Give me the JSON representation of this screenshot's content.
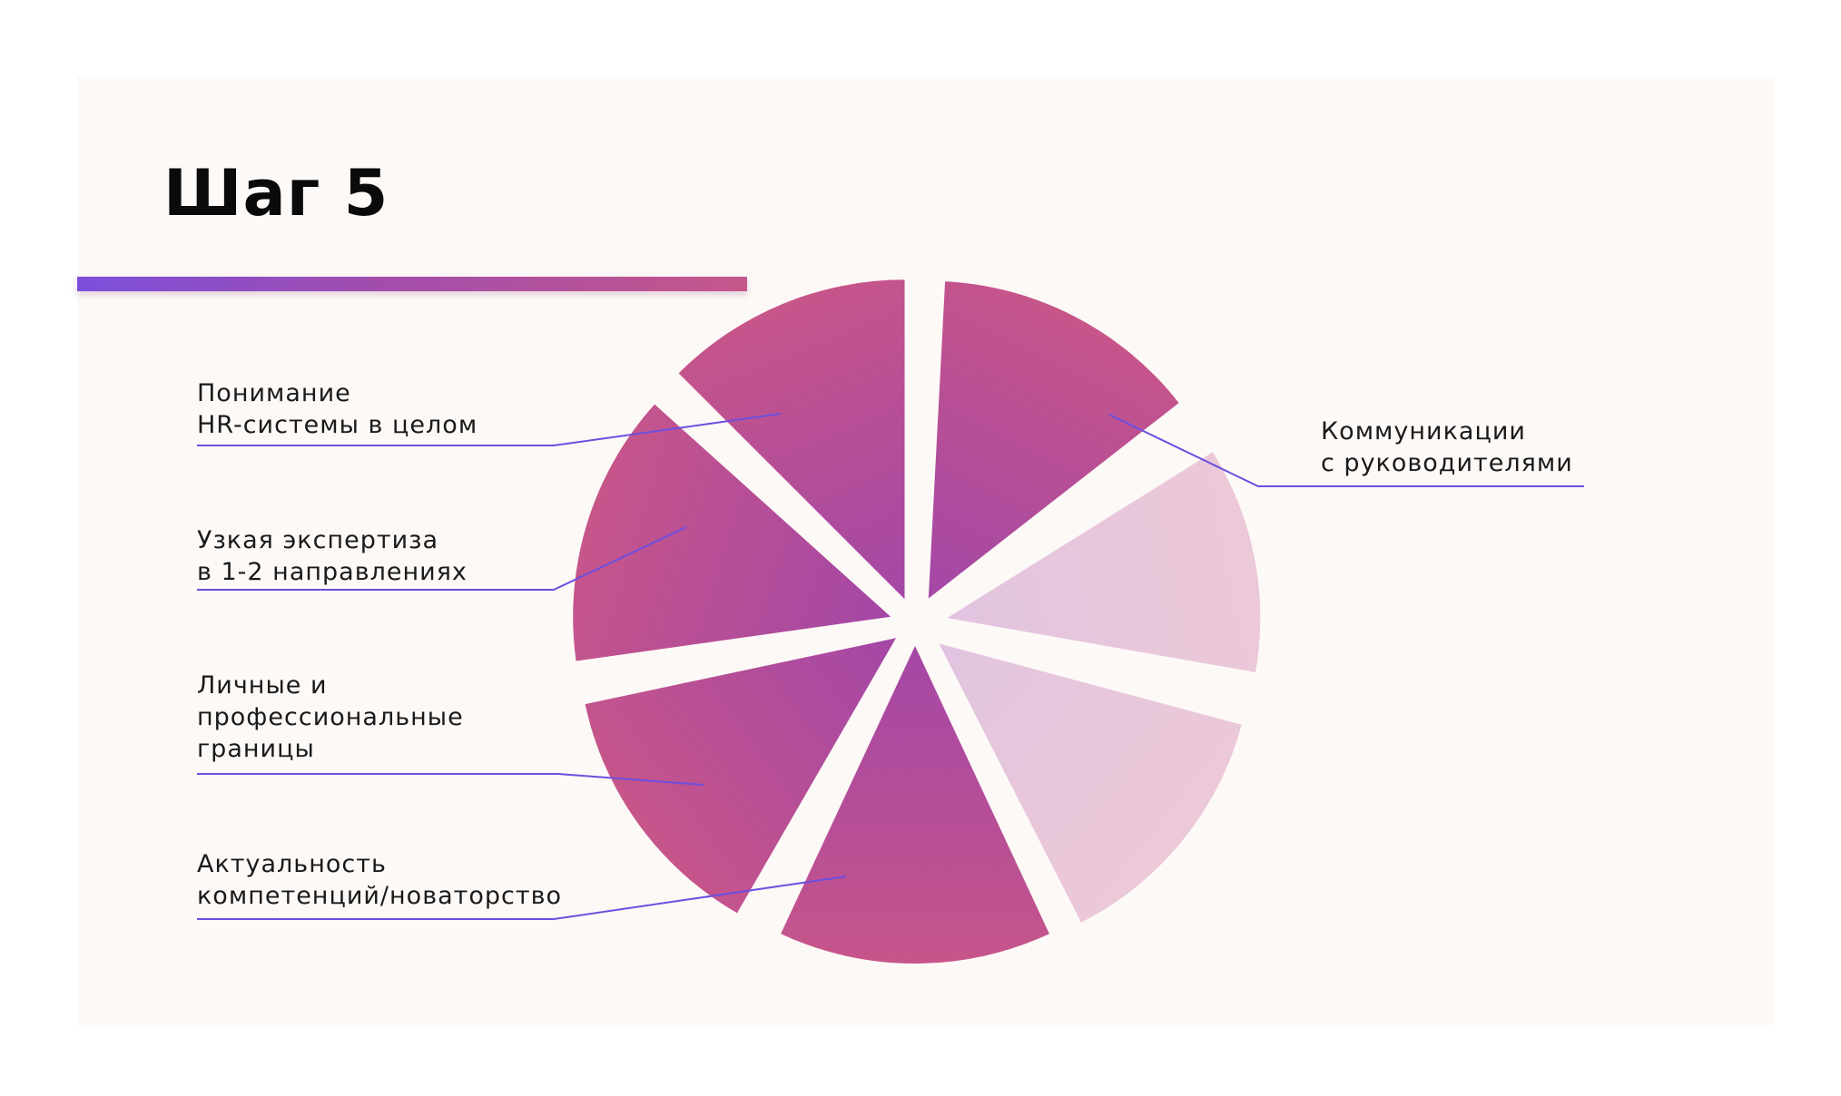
{
  "slide": {
    "title": "Шаг 5"
  },
  "diagram": {
    "segments": [
      {
        "id": "upper-left",
        "fill": "dark",
        "label": [
          "Понимание",
          "HR-системы в целом"
        ]
      },
      {
        "id": "left",
        "fill": "dark",
        "label": [
          "Узкая экспертиза",
          "в 1-2 направлениях"
        ]
      },
      {
        "id": "lower-left",
        "fill": "dark",
        "label": [
          "Личные и",
          "профессиональные",
          "границы"
        ]
      },
      {
        "id": "bottom",
        "fill": "dark",
        "label": [
          "Актуальность",
          "компетенций/новаторство"
        ]
      },
      {
        "id": "lower-right",
        "fill": "light",
        "label": []
      },
      {
        "id": "right",
        "fill": "light",
        "label": []
      },
      {
        "id": "upper-right",
        "fill": "dark",
        "label": [
          "Коммуникации",
          "с руководителями"
        ]
      }
    ],
    "colors": {
      "dark_outer": "#c6558a",
      "dark_inner": "#a447a6",
      "light_outer": "#ecc9d8",
      "light_inner": "#e2c4e0",
      "leader_line": "#6b4fe0",
      "accent_start": "#7b4fdb",
      "accent_end": "#c5578a"
    }
  }
}
